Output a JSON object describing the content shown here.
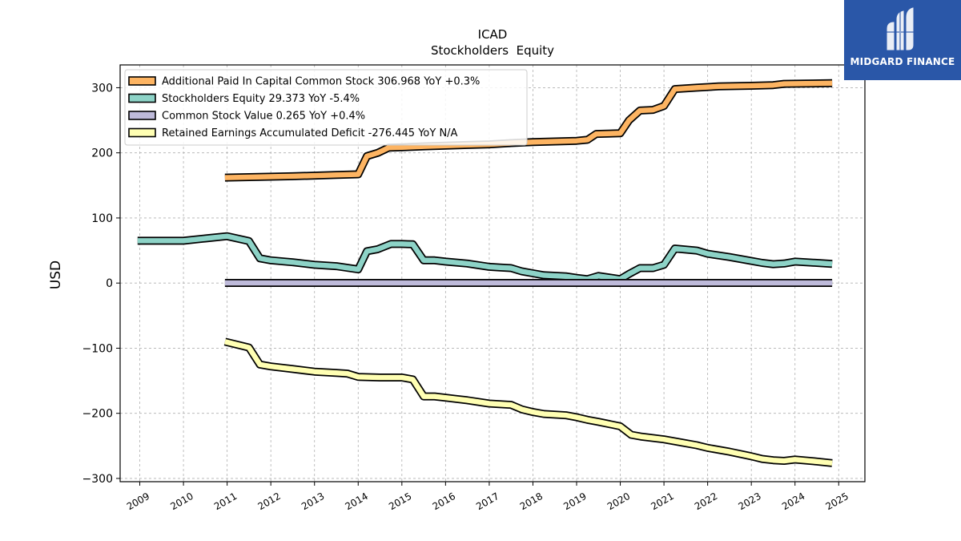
{
  "logo": {
    "text": "MIDGARD FINANCE",
    "background": "#2a57a8"
  },
  "chart_data": {
    "type": "line",
    "title": "ICAD",
    "subtitle": "Stockholders  Equity",
    "xlabel": "",
    "ylabel": "USD",
    "xlim": [
      2008.55,
      2025.6
    ],
    "ylim": [
      -305,
      335
    ],
    "x_ticks": [
      "2009",
      "2010",
      "2011",
      "2012",
      "2013",
      "2014",
      "2015",
      "2016",
      "2017",
      "2018",
      "2019",
      "2020",
      "2021",
      "2022",
      "2023",
      "2024",
      "2025"
    ],
    "y_ticks": [
      300,
      200,
      100,
      0,
      -100,
      -200,
      -300
    ],
    "y_tick_labels": [
      "300",
      "200",
      "100",
      "0",
      "−100",
      "−200",
      "−300"
    ],
    "grid": true,
    "legend_position": "top-left",
    "series": [
      {
        "name": "Additional Paid In Capital Common Stock",
        "legend": "Additional Paid In Capital Common Stock  306.968 YoY +0.3%",
        "color": "#fdb462",
        "points": [
          [
            2010.95,
            162
          ],
          [
            2012.5,
            164
          ],
          [
            2013.0,
            165
          ],
          [
            2013.5,
            166
          ],
          [
            2014.0,
            167
          ],
          [
            2014.2,
            195
          ],
          [
            2014.45,
            200
          ],
          [
            2014.7,
            208
          ],
          [
            2015.0,
            208.5
          ],
          [
            2015.5,
            210
          ],
          [
            2016.0,
            211
          ],
          [
            2016.5,
            212
          ],
          [
            2017.0,
            213
          ],
          [
            2017.5,
            215
          ],
          [
            2018.0,
            216.5
          ],
          [
            2018.5,
            217.5
          ],
          [
            2019.0,
            218.5
          ],
          [
            2019.25,
            220
          ],
          [
            2019.45,
            229
          ],
          [
            2020.0,
            230
          ],
          [
            2020.2,
            250
          ],
          [
            2020.45,
            265
          ],
          [
            2020.75,
            266
          ],
          [
            2021.0,
            272
          ],
          [
            2021.25,
            298
          ],
          [
            2021.75,
            300
          ],
          [
            2022.25,
            302
          ],
          [
            2023.0,
            303
          ],
          [
            2023.5,
            304
          ],
          [
            2023.75,
            306
          ],
          [
            2024.25,
            306.5
          ],
          [
            2024.85,
            306.968
          ]
        ]
      },
      {
        "name": "Stockholders Equity",
        "legend": "Stockholders Equity  29.373 YoY -5.4%",
        "color": "#8dd3c7",
        "points": [
          [
            2008.95,
            65
          ],
          [
            2010.0,
            65
          ],
          [
            2010.5,
            68.5
          ],
          [
            2011.0,
            72
          ],
          [
            2011.5,
            64.5
          ],
          [
            2011.75,
            38
          ],
          [
            2012.0,
            35
          ],
          [
            2012.5,
            32
          ],
          [
            2013.0,
            28
          ],
          [
            2013.5,
            26
          ],
          [
            2013.75,
            23.5
          ],
          [
            2014.0,
            21
          ],
          [
            2014.2,
            49
          ],
          [
            2014.45,
            52
          ],
          [
            2014.75,
            60
          ],
          [
            2015.0,
            60
          ],
          [
            2015.25,
            59.5
          ],
          [
            2015.5,
            35
          ],
          [
            2015.75,
            35
          ],
          [
            2016.0,
            33
          ],
          [
            2016.5,
            30
          ],
          [
            2017.0,
            25
          ],
          [
            2017.25,
            24
          ],
          [
            2017.5,
            23
          ],
          [
            2017.75,
            18
          ],
          [
            2018.0,
            15
          ],
          [
            2018.25,
            12
          ],
          [
            2018.75,
            10.5
          ],
          [
            2019.0,
            8
          ],
          [
            2019.25,
            6
          ],
          [
            2019.5,
            11
          ],
          [
            2020.0,
            6
          ],
          [
            2020.2,
            14
          ],
          [
            2020.45,
            23
          ],
          [
            2020.75,
            23
          ],
          [
            2021.0,
            28
          ],
          [
            2021.25,
            53
          ],
          [
            2021.75,
            50
          ],
          [
            2022.0,
            45
          ],
          [
            2022.5,
            40
          ],
          [
            2023.0,
            34
          ],
          [
            2023.25,
            31
          ],
          [
            2023.5,
            29
          ],
          [
            2023.75,
            30
          ],
          [
            2024.0,
            33
          ],
          [
            2024.5,
            31
          ],
          [
            2024.85,
            29.373
          ]
        ]
      },
      {
        "name": "Common Stock Value",
        "legend": "Common Stock Value  0.265 YoY +0.4%",
        "color": "#bebada",
        "points": [
          [
            2010.95,
            0.26
          ],
          [
            2012.5,
            0.26
          ],
          [
            2013.0,
            0.26
          ],
          [
            2016.0,
            0.26
          ],
          [
            2020.0,
            0.26
          ],
          [
            2024.85,
            0.265
          ]
        ]
      },
      {
        "name": "Retained Earnings Accumulated Deficit",
        "legend": "Retained Earnings Accumulated Deficit  -276.445 YoY N/A",
        "color": "#ffffb3",
        "points": [
          [
            2010.95,
            -90
          ],
          [
            2011.5,
            -99
          ],
          [
            2011.75,
            -125
          ],
          [
            2012.0,
            -128
          ],
          [
            2012.5,
            -132
          ],
          [
            2013.0,
            -136
          ],
          [
            2013.5,
            -138
          ],
          [
            2013.75,
            -139
          ],
          [
            2014.0,
            -144
          ],
          [
            2014.5,
            -145
          ],
          [
            2015.0,
            -145
          ],
          [
            2015.25,
            -148
          ],
          [
            2015.5,
            -174
          ],
          [
            2015.75,
            -174
          ],
          [
            2016.0,
            -176
          ],
          [
            2016.25,
            -178
          ],
          [
            2016.5,
            -180
          ],
          [
            2017.0,
            -185
          ],
          [
            2017.5,
            -187
          ],
          [
            2017.75,
            -194
          ],
          [
            2018.0,
            -198
          ],
          [
            2018.25,
            -201
          ],
          [
            2018.75,
            -203
          ],
          [
            2019.0,
            -206
          ],
          [
            2019.25,
            -210
          ],
          [
            2019.5,
            -213
          ],
          [
            2020.0,
            -220
          ],
          [
            2020.25,
            -233
          ],
          [
            2020.5,
            -236
          ],
          [
            2021.0,
            -240
          ],
          [
            2021.5,
            -246
          ],
          [
            2021.75,
            -249
          ],
          [
            2022.0,
            -253
          ],
          [
            2022.5,
            -259
          ],
          [
            2023.0,
            -266
          ],
          [
            2023.25,
            -270
          ],
          [
            2023.5,
            -272
          ],
          [
            2023.75,
            -273
          ],
          [
            2024.0,
            -271
          ],
          [
            2024.5,
            -274
          ],
          [
            2024.85,
            -276.445
          ]
        ]
      }
    ]
  }
}
